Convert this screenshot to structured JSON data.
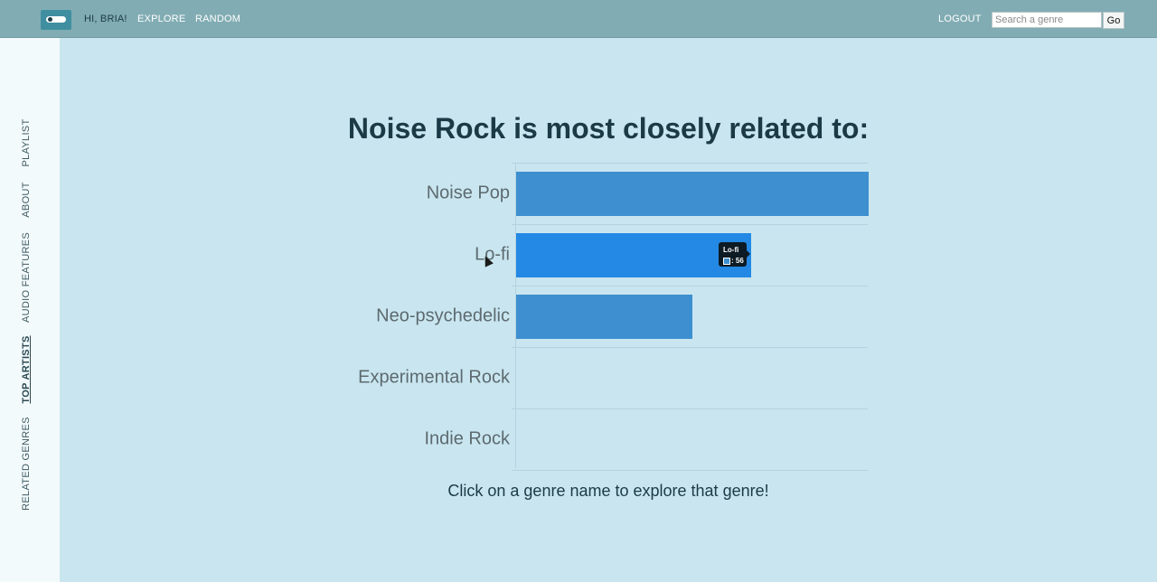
{
  "nav": {
    "greeting": "HI, BRIA!",
    "explore": "EXPLORE",
    "random": "RANDOM",
    "logout": "LOGOUT",
    "search_placeholder": "Search a genre",
    "go_label": "Go"
  },
  "sidebar": {
    "items": [
      {
        "label": "PLAYLIST",
        "active": false
      },
      {
        "label": "ABOUT",
        "active": false
      },
      {
        "label": "AUDIO FEATURES",
        "active": false
      },
      {
        "label": "TOP ARTISTS",
        "active": true
      },
      {
        "label": "RELATED GENRES",
        "active": false
      }
    ]
  },
  "main": {
    "heading": "Noise Rock is most closely related to:",
    "caption": "Click on a genre name to explore that genre!"
  },
  "chart_data": {
    "type": "bar",
    "orientation": "horizontal",
    "categories": [
      "Noise Pop",
      "Lo-fi",
      "Neo-psychedelic",
      "Experimental Rock",
      "Indie Rock"
    ],
    "values": [
      84,
      56,
      42,
      0,
      0
    ],
    "xlim": [
      0,
      84
    ],
    "grid": true,
    "bar_color": "#3d8fcf",
    "hover_color": "#2389e4",
    "tooltip": {
      "category": "Lo-fi",
      "value_text": ": 56"
    }
  },
  "colors": {
    "topbar": "#81acb3",
    "background": "#c9e6f0",
    "sidebar": "#f3fafc",
    "heading": "#1b3a46"
  }
}
